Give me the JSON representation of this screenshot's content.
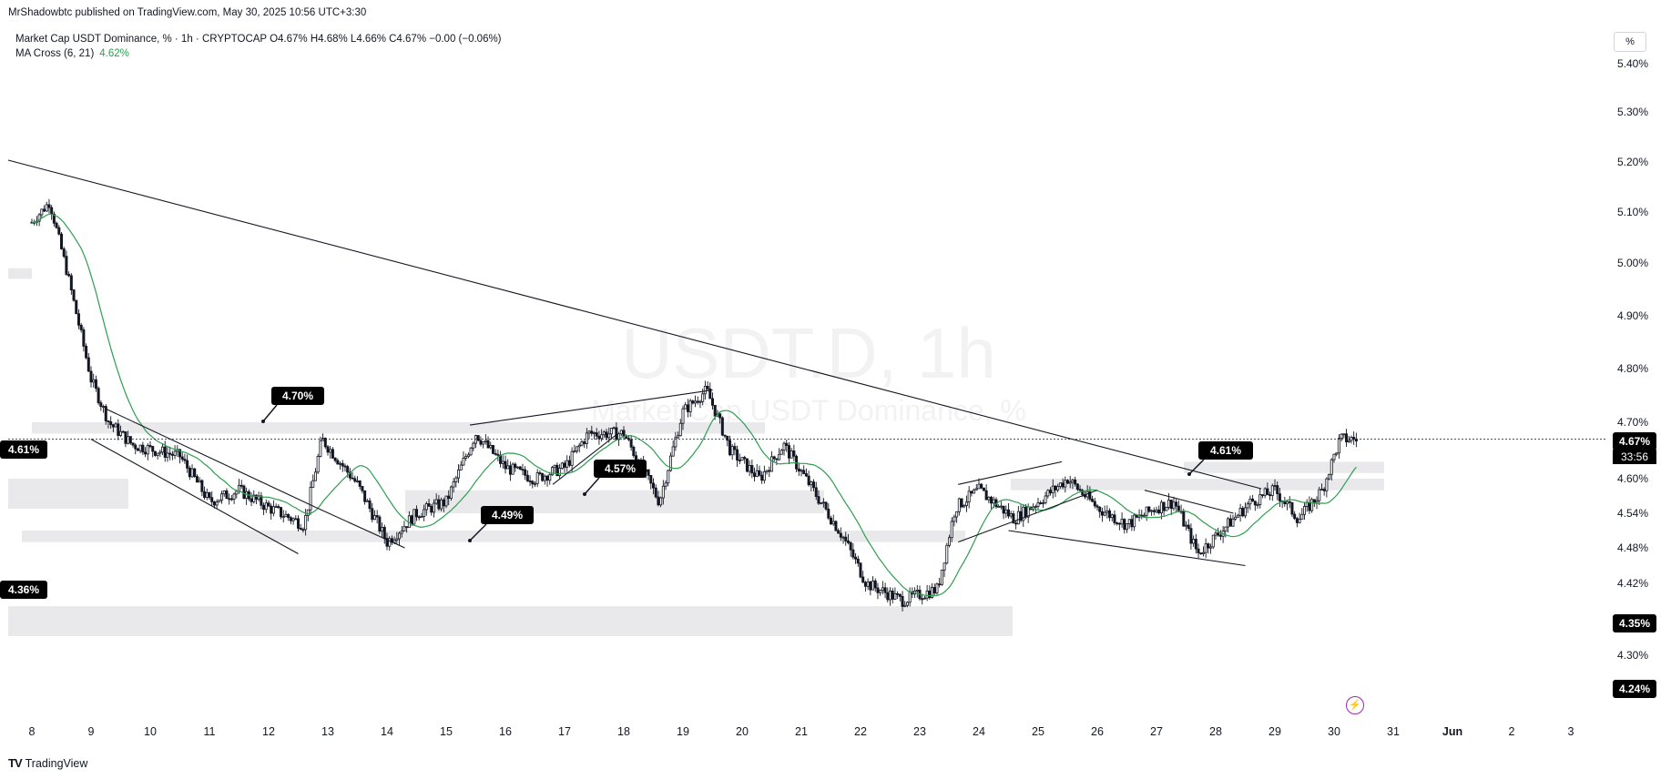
{
  "publisher_line": "MrShadowbtc published on TradingView.com, May 30, 2025 10:56 UTC+3:30",
  "symbol_line": "Market Cap USDT Dominance, % · 1h · CRYPTOCAP  O4.67%  H4.68%  L4.66%  C4.67%  −0.00 (−0.06%)",
  "indicator": {
    "name": "MA Cross (6, 21)",
    "value": "4.62%"
  },
  "watermark": {
    "symbol": "USDT.D, 1h",
    "name": "Market Cap USDT Dominance, %"
  },
  "currency_button": "%",
  "footer": {
    "logo": "TV",
    "brand": "TradingView"
  },
  "colors": {
    "candle": "#131722",
    "ma": "#2e9e4f",
    "zone": "#e9e9eb",
    "label_bg": "#000000",
    "bolt": "#9c27b0"
  },
  "chart_data": {
    "type": "candlestick",
    "timeframe": "1h",
    "y_unit": "%",
    "ylim": [
      4.22,
      5.43
    ],
    "y_ticks": [
      "5.40%",
      "5.30%",
      "5.20%",
      "5.10%",
      "5.00%",
      "4.90%",
      "4.80%",
      "4.70%",
      "4.60%",
      "4.54%",
      "4.48%",
      "4.42%",
      "4.30%"
    ],
    "x_ticks": [
      "8",
      "9",
      "10",
      "11",
      "12",
      "13",
      "14",
      "15",
      "16",
      "17",
      "18",
      "19",
      "20",
      "21",
      "22",
      "23",
      "24",
      "25",
      "26",
      "27",
      "28",
      "29",
      "30",
      "31",
      "Jun",
      "2",
      "3"
    ],
    "price_path": [
      [
        8.0,
        5.08
      ],
      [
        8.3,
        5.12
      ],
      [
        8.6,
        4.98
      ],
      [
        9.0,
        4.78
      ],
      [
        9.3,
        4.7
      ],
      [
        9.7,
        4.66
      ],
      [
        10.5,
        4.64
      ],
      [
        11.0,
        4.56
      ],
      [
        11.5,
        4.58
      ],
      [
        12.0,
        4.55
      ],
      [
        12.6,
        4.52
      ],
      [
        12.9,
        4.67
      ],
      [
        13.5,
        4.59
      ],
      [
        14.0,
        4.49
      ],
      [
        14.5,
        4.54
      ],
      [
        15.0,
        4.56
      ],
      [
        15.5,
        4.68
      ],
      [
        16.0,
        4.62
      ],
      [
        16.5,
        4.6
      ],
      [
        17.0,
        4.62
      ],
      [
        17.4,
        4.68
      ],
      [
        18.0,
        4.68
      ],
      [
        18.6,
        4.56
      ],
      [
        19.0,
        4.72
      ],
      [
        19.4,
        4.76
      ],
      [
        19.8,
        4.65
      ],
      [
        20.3,
        4.6
      ],
      [
        20.7,
        4.66
      ],
      [
        21.2,
        4.58
      ],
      [
        21.7,
        4.5
      ],
      [
        22.1,
        4.42
      ],
      [
        22.7,
        4.39
      ],
      [
        23.3,
        4.41
      ],
      [
        23.6,
        4.55
      ],
      [
        24.0,
        4.58
      ],
      [
        24.6,
        4.53
      ],
      [
        25.0,
        4.56
      ],
      [
        25.5,
        4.6
      ],
      [
        26.0,
        4.55
      ],
      [
        26.5,
        4.52
      ],
      [
        27.0,
        4.55
      ],
      [
        27.3,
        4.56
      ],
      [
        27.7,
        4.47
      ],
      [
        28.2,
        4.52
      ],
      [
        28.6,
        4.56
      ],
      [
        29.0,
        4.58
      ],
      [
        29.4,
        4.53
      ],
      [
        29.8,
        4.58
      ],
      [
        30.1,
        4.67
      ],
      [
        30.4,
        4.67
      ]
    ],
    "last_price": "4.67%",
    "countdown": "33:56",
    "price_labels": [
      "4.61%",
      "4.36%",
      "4.35%",
      "4.24%"
    ],
    "callouts": [
      "4.70%",
      "4.49%",
      "4.57%",
      "4.61%"
    ],
    "zones": [
      [
        4.7,
        4.68
      ],
      [
        4.58,
        4.54
      ],
      [
        4.51,
        4.49
      ],
      [
        4.6,
        4.58
      ],
      [
        4.38,
        4.33
      ],
      [
        4.99,
        4.97
      ],
      [
        4.63,
        4.61
      ]
    ],
    "series": [
      {
        "name": "MA Cross (6, 21)"
      }
    ]
  }
}
